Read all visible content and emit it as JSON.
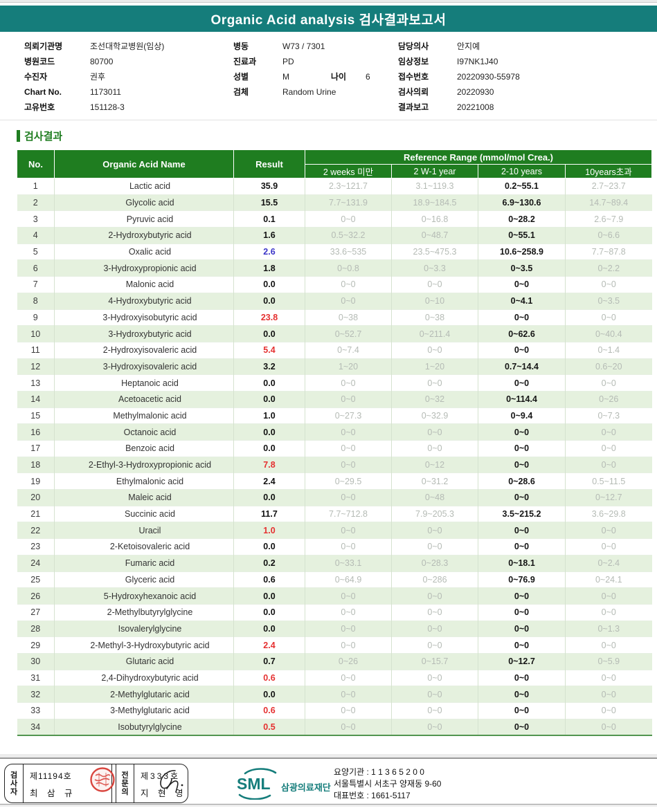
{
  "title": "Organic Acid analysis 검사결과보고서",
  "patient_info": {
    "left": [
      {
        "label": "의뢰기관명",
        "value": "조선대학교병원(임상)"
      },
      {
        "label": "병원코드",
        "value": "80700"
      },
      {
        "label": "수진자",
        "value": "권후"
      },
      {
        "label": "Chart No.",
        "value": "1173011"
      },
      {
        "label": "고유번호",
        "value": "151128-3"
      }
    ],
    "middle": [
      {
        "label": "병동",
        "value": "W73 / 7301"
      },
      {
        "label": "진료과",
        "value": "PD"
      },
      {
        "label": "성별",
        "value": "M",
        "label2": "나이",
        "value2": "6"
      },
      {
        "label": "검체",
        "value": "Random Urine"
      }
    ],
    "right": [
      {
        "label": "담당의사",
        "value": "안지예"
      },
      {
        "label": "임상정보",
        "value": "I97NK1J40"
      },
      {
        "label": "접수번호",
        "value": "20220930-55978"
      },
      {
        "label": "검사의뢰",
        "value": "20220930"
      },
      {
        "label": "결과보고",
        "value": "20221008"
      }
    ]
  },
  "section": {
    "title": "검사결과"
  },
  "table": {
    "headers": {
      "no": "No.",
      "name": "Organic Acid Name",
      "result": "Result",
      "ref_group": "Reference Range (mmol/mol Crea.)",
      "ref_cols": [
        "2 weeks 미만",
        "2 W-1 year",
        "2-10 years",
        "10years초과"
      ]
    },
    "rows": [
      {
        "no": "1",
        "name": "Lactic acid",
        "result": "35.9",
        "flag": "black",
        "ref": [
          "2.3~121.7",
          "3.1~119.3",
          "0.2~55.1",
          "2.7~23.7"
        ]
      },
      {
        "no": "2",
        "name": "Glycolic acid",
        "result": "15.5",
        "flag": "black",
        "ref": [
          "7.7~131.9",
          "18.9~184.5",
          "6.9~130.6",
          "14.7~89.4"
        ]
      },
      {
        "no": "3",
        "name": "Pyruvic acid",
        "result": "0.1",
        "flag": "black",
        "ref": [
          "0~0",
          "0~16.8",
          "0~28.2",
          "2.6~7.9"
        ]
      },
      {
        "no": "4",
        "name": "2-Hydroxybutyric acid",
        "result": "1.6",
        "flag": "black",
        "ref": [
          "0.5~32.2",
          "0~48.7",
          "0~55.1",
          "0~6.6"
        ]
      },
      {
        "no": "5",
        "name": "Oxalic acid",
        "result": "2.6",
        "flag": "blue",
        "ref": [
          "33.6~535",
          "23.5~475.3",
          "10.6~258.9",
          "7.7~87.8"
        ]
      },
      {
        "no": "6",
        "name": "3-Hydroxypropionic acid",
        "result": "1.8",
        "flag": "black",
        "ref": [
          "0~0.8",
          "0~3.3",
          "0~3.5",
          "0~2.2"
        ]
      },
      {
        "no": "7",
        "name": "Malonic acid",
        "result": "0.0",
        "flag": "black",
        "ref": [
          "0~0",
          "0~0",
          "0~0",
          "0~0"
        ]
      },
      {
        "no": "8",
        "name": "4-Hydroxybutyric acid",
        "result": "0.0",
        "flag": "black",
        "ref": [
          "0~0",
          "0~10",
          "0~4.1",
          "0~3.5"
        ]
      },
      {
        "no": "9",
        "name": "3-Hydroxyisobutyric acid",
        "result": "23.8",
        "flag": "red",
        "ref": [
          "0~38",
          "0~38",
          "0~0",
          "0~0"
        ]
      },
      {
        "no": "10",
        "name": "3-Hydroxybutyric acid",
        "result": "0.0",
        "flag": "black",
        "ref": [
          "0~52.7",
          "0~211.4",
          "0~62.6",
          "0~40.4"
        ]
      },
      {
        "no": "11",
        "name": "2-Hydroxyisovaleric acid",
        "result": "5.4",
        "flag": "red",
        "ref": [
          "0~7.4",
          "0~0",
          "0~0",
          "0~1.4"
        ]
      },
      {
        "no": "12",
        "name": "3-Hydroxyisovaleric acid",
        "result": "3.2",
        "flag": "black",
        "ref": [
          "1~20",
          "1~20",
          "0.7~14.4",
          "0.6~20"
        ]
      },
      {
        "no": "13",
        "name": "Heptanoic acid",
        "result": "0.0",
        "flag": "black",
        "ref": [
          "0~0",
          "0~0",
          "0~0",
          "0~0"
        ]
      },
      {
        "no": "14",
        "name": "Acetoacetic acid",
        "result": "0.0",
        "flag": "black",
        "ref": [
          "0~0",
          "0~32",
          "0~114.4",
          "0~26"
        ]
      },
      {
        "no": "15",
        "name": "Methylmalonic acid",
        "result": "1.0",
        "flag": "black",
        "ref": [
          "0~27.3",
          "0~32.9",
          "0~9.4",
          "0~7.3"
        ]
      },
      {
        "no": "16",
        "name": "Octanoic acid",
        "result": "0.0",
        "flag": "black",
        "ref": [
          "0~0",
          "0~0",
          "0~0",
          "0~0"
        ]
      },
      {
        "no": "17",
        "name": "Benzoic acid",
        "result": "0.0",
        "flag": "black",
        "ref": [
          "0~0",
          "0~0",
          "0~0",
          "0~0"
        ]
      },
      {
        "no": "18",
        "name": "2-Ethyl-3-Hydroxypropionic acid",
        "result": "7.8",
        "flag": "red",
        "ref": [
          "0~0",
          "0~12",
          "0~0",
          "0~0"
        ]
      },
      {
        "no": "19",
        "name": "Ethylmalonic acid",
        "result": "2.4",
        "flag": "black",
        "ref": [
          "0~29.5",
          "0~31.2",
          "0~28.6",
          "0.5~11.5"
        ]
      },
      {
        "no": "20",
        "name": "Maleic acid",
        "result": "0.0",
        "flag": "black",
        "ref": [
          "0~0",
          "0~48",
          "0~0",
          "0~12.7"
        ]
      },
      {
        "no": "21",
        "name": "Succinic acid",
        "result": "11.7",
        "flag": "black",
        "ref": [
          "7.7~712.8",
          "7.9~205.3",
          "3.5~215.2",
          "3.6~29.8"
        ]
      },
      {
        "no": "22",
        "name": "Uracil",
        "result": "1.0",
        "flag": "red",
        "ref": [
          "0~0",
          "0~0",
          "0~0",
          "0~0"
        ]
      },
      {
        "no": "23",
        "name": "2-Ketoisovaleric acid",
        "result": "0.0",
        "flag": "black",
        "ref": [
          "0~0",
          "0~0",
          "0~0",
          "0~0"
        ]
      },
      {
        "no": "24",
        "name": "Fumaric acid",
        "result": "0.2",
        "flag": "black",
        "ref": [
          "0~33.1",
          "0~28.3",
          "0~18.1",
          "0~2.4"
        ]
      },
      {
        "no": "25",
        "name": "Glyceric acid",
        "result": "0.6",
        "flag": "black",
        "ref": [
          "0~64.9",
          "0~286",
          "0~76.9",
          "0~24.1"
        ]
      },
      {
        "no": "26",
        "name": "5-Hydroxyhexanoic acid",
        "result": "0.0",
        "flag": "black",
        "ref": [
          "0~0",
          "0~0",
          "0~0",
          "0~0"
        ]
      },
      {
        "no": "27",
        "name": "2-Methylbutyrylglycine",
        "result": "0.0",
        "flag": "black",
        "ref": [
          "0~0",
          "0~0",
          "0~0",
          "0~0"
        ]
      },
      {
        "no": "28",
        "name": "Isovalerylglycine",
        "result": "0.0",
        "flag": "black",
        "ref": [
          "0~0",
          "0~0",
          "0~0",
          "0~1.3"
        ]
      },
      {
        "no": "29",
        "name": "2-Methyl-3-Hydroxybutyric acid",
        "result": "2.4",
        "flag": "red",
        "ref": [
          "0~0",
          "0~0",
          "0~0",
          "0~0"
        ]
      },
      {
        "no": "30",
        "name": "Glutaric acid",
        "result": "0.7",
        "flag": "black",
        "ref": [
          "0~26",
          "0~15.7",
          "0~12.7",
          "0~5.9"
        ]
      },
      {
        "no": "31",
        "name": "2,4-Dihydroxybutyric acid",
        "result": "0.6",
        "flag": "red",
        "ref": [
          "0~0",
          "0~0",
          "0~0",
          "0~0"
        ]
      },
      {
        "no": "32",
        "name": "2-Methylglutaric acid",
        "result": "0.0",
        "flag": "black",
        "ref": [
          "0~0",
          "0~0",
          "0~0",
          "0~0"
        ]
      },
      {
        "no": "33",
        "name": "3-Methylglutaric acid",
        "result": "0.6",
        "flag": "red",
        "ref": [
          "0~0",
          "0~0",
          "0~0",
          "0~0"
        ]
      },
      {
        "no": "34",
        "name": "Isobutyrylglycine",
        "result": "0.5",
        "flag": "red",
        "ref": [
          "0~0",
          "0~0",
          "0~0",
          "0~0"
        ]
      }
    ]
  },
  "footer": {
    "examiner": {
      "role": "검사자",
      "cert": "제11194호",
      "name": "최 삼 규"
    },
    "specialist": {
      "role": "전문의",
      "cert": "제333호",
      "name": "지 현 영"
    },
    "logo": {
      "abbr": "SML",
      "org": "삼광의료재단"
    },
    "info_lines": [
      "요양기관 : 1 1 3 6 5 2 0 0",
      "서울특별시 서초구 양재동 9-60",
      "대표번호 : 1661-5117"
    ]
  },
  "colors": {
    "teal": "#157d7b",
    "header_green": "#1f7d20",
    "row_green": "#e5f1de",
    "flag_red": "#e53030",
    "flag_blue": "#3b35c8",
    "ref_gray": "#b5bbb5",
    "stamp_red": "#d9453e"
  }
}
